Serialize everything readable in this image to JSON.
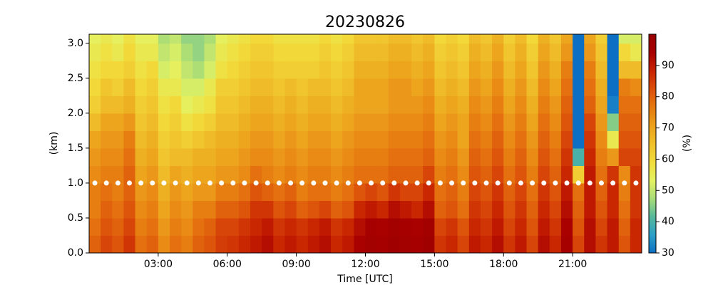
{
  "chart_data": {
    "type": "heatmap",
    "title": "20230826",
    "xlabel": "Time [UTC]",
    "ylabel": "(km)",
    "colorbar_label": "(%)",
    "xlim": [
      0,
      24
    ],
    "ylim": [
      0,
      3.13
    ],
    "xticks": [
      {
        "value": 3,
        "label": "03:00"
      },
      {
        "value": 6,
        "label": "06:00"
      },
      {
        "value": 9,
        "label": "09:00"
      },
      {
        "value": 12,
        "label": "12:00"
      },
      {
        "value": 15,
        "label": "15:00"
      },
      {
        "value": 18,
        "label": "18:00"
      },
      {
        "value": 21,
        "label": "21:00"
      }
    ],
    "yticks": [
      {
        "value": 0,
        "label": "0.0"
      },
      {
        "value": 0.5,
        "label": "0.5"
      },
      {
        "value": 1,
        "label": "1.0"
      },
      {
        "value": 1.5,
        "label": "1.5"
      },
      {
        "value": 2,
        "label": "2.0"
      },
      {
        "value": 2.5,
        "label": "2.5"
      },
      {
        "value": 3,
        "label": "3.0"
      }
    ],
    "clim": [
      30,
      100
    ],
    "cticks": [
      30,
      40,
      50,
      60,
      70,
      80,
      90
    ],
    "colormap": [
      "#0c6fc4",
      "#2a9fc8",
      "#56b89a",
      "#a8dc78",
      "#e4f262",
      "#f2dc3c",
      "#f0c02a",
      "#eca01c",
      "#e67a10",
      "#dc500a",
      "#c82402",
      "#a80000",
      "#980000"
    ],
    "x": [
      0.25,
      0.75,
      1.25,
      1.75,
      2.25,
      2.75,
      3.25,
      3.75,
      4.25,
      4.75,
      5.25,
      5.75,
      6.25,
      6.75,
      7.25,
      7.75,
      8.25,
      8.75,
      9.25,
      9.75,
      10.25,
      10.75,
      11.25,
      11.75,
      12.25,
      12.75,
      13.25,
      13.75,
      14.25,
      14.75,
      15.25,
      15.75,
      16.25,
      16.75,
      17.25,
      17.75,
      18.25,
      18.75,
      19.25,
      19.75,
      20.25,
      20.75,
      21.25,
      21.75,
      22.25,
      22.75,
      23.25,
      23.75
    ],
    "y": [
      0.125,
      0.375,
      0.625,
      0.875,
      1.125,
      1.375,
      1.625,
      1.875,
      2.125,
      2.375,
      2.625,
      2.875,
      3.125
    ],
    "z": [
      [
        80,
        84,
        82,
        86,
        78,
        80,
        74,
        78,
        76,
        80,
        82,
        85,
        86,
        88,
        90,
        92,
        88,
        90,
        88,
        90,
        92,
        88,
        90,
        94,
        96,
        95,
        97,
        96,
        95,
        97,
        86,
        88,
        84,
        90,
        88,
        92,
        86,
        90,
        84,
        92,
        88,
        95,
        84,
        92,
        86,
        90,
        82,
        88
      ],
      [
        78,
        82,
        80,
        84,
        76,
        78,
        72,
        76,
        74,
        78,
        80,
        84,
        84,
        86,
        88,
        90,
        86,
        88,
        86,
        88,
        90,
        86,
        88,
        92,
        95,
        94,
        96,
        95,
        94,
        96,
        84,
        86,
        82,
        88,
        86,
        90,
        84,
        88,
        82,
        90,
        86,
        94,
        82,
        92,
        84,
        90,
        80,
        88
      ],
      [
        76,
        80,
        78,
        82,
        74,
        76,
        70,
        74,
        72,
        76,
        76,
        80,
        80,
        82,
        86,
        86,
        82,
        84,
        80,
        82,
        84,
        80,
        82,
        88,
        90,
        88,
        92,
        90,
        88,
        92,
        80,
        82,
        78,
        86,
        84,
        88,
        82,
        86,
        80,
        88,
        84,
        92,
        80,
        90,
        82,
        88,
        78,
        86
      ],
      [
        76,
        78,
        76,
        80,
        72,
        74,
        68,
        72,
        70,
        72,
        72,
        76,
        76,
        78,
        82,
        80,
        78,
        80,
        76,
        78,
        78,
        76,
        78,
        82,
        84,
        82,
        86,
        84,
        84,
        88,
        78,
        80,
        76,
        84,
        82,
        86,
        80,
        84,
        78,
        86,
        82,
        90,
        78,
        90,
        80,
        88,
        76,
        86
      ],
      [
        74,
        76,
        76,
        80,
        70,
        72,
        66,
        70,
        68,
        70,
        70,
        72,
        72,
        74,
        78,
        76,
        74,
        76,
        74,
        76,
        76,
        74,
        76,
        78,
        78,
        78,
        80,
        80,
        80,
        84,
        76,
        78,
        74,
        82,
        80,
        84,
        78,
        82,
        76,
        84,
        80,
        88,
        62,
        90,
        78,
        86,
        74,
        86
      ],
      [
        72,
        74,
        74,
        78,
        68,
        70,
        64,
        66,
        66,
        68,
        68,
        70,
        70,
        72,
        74,
        74,
        72,
        74,
        72,
        74,
        74,
        72,
        74,
        76,
        76,
        76,
        78,
        78,
        78,
        80,
        74,
        76,
        72,
        80,
        78,
        82,
        76,
        80,
        74,
        82,
        78,
        86,
        40,
        88,
        76,
        72,
        84,
        84
      ],
      [
        70,
        72,
        72,
        76,
        66,
        68,
        62,
        64,
        62,
        64,
        66,
        68,
        68,
        70,
        72,
        72,
        70,
        72,
        70,
        72,
        72,
        70,
        72,
        74,
        74,
        74,
        76,
        76,
        76,
        78,
        72,
        74,
        70,
        78,
        76,
        80,
        74,
        78,
        72,
        80,
        76,
        84,
        30,
        86,
        74,
        56,
        82,
        82
      ],
      [
        66,
        70,
        70,
        72,
        64,
        66,
        60,
        62,
        58,
        60,
        62,
        66,
        66,
        68,
        70,
        70,
        68,
        70,
        68,
        70,
        70,
        68,
        70,
        72,
        72,
        72,
        74,
        74,
        74,
        76,
        70,
        72,
        70,
        76,
        74,
        78,
        72,
        76,
        70,
        78,
        74,
        82,
        30,
        84,
        72,
        45,
        80,
        80
      ],
      [
        62,
        66,
        66,
        68,
        62,
        64,
        58,
        60,
        54,
        56,
        58,
        64,
        64,
        66,
        68,
        68,
        66,
        68,
        66,
        68,
        68,
        66,
        68,
        70,
        70,
        70,
        72,
        72,
        72,
        74,
        68,
        70,
        68,
        74,
        72,
        76,
        70,
        74,
        68,
        76,
        72,
        80,
        30,
        80,
        70,
        32,
        78,
        78
      ],
      [
        60,
        64,
        62,
        66,
        60,
        62,
        56,
        56,
        52,
        52,
        56,
        62,
        62,
        64,
        66,
        66,
        64,
        66,
        64,
        66,
        66,
        64,
        66,
        70,
        70,
        70,
        72,
        72,
        70,
        72,
        66,
        68,
        66,
        72,
        70,
        74,
        68,
        72,
        66,
        74,
        70,
        78,
        30,
        78,
        68,
        30,
        76,
        74
      ],
      [
        58,
        60,
        60,
        62,
        58,
        60,
        52,
        54,
        50,
        48,
        52,
        58,
        60,
        62,
        64,
        64,
        62,
        62,
        62,
        62,
        64,
        62,
        64,
        68,
        68,
        68,
        70,
        70,
        68,
        70,
        64,
        66,
        64,
        70,
        68,
        72,
        66,
        70,
        64,
        72,
        68,
        76,
        30,
        76,
        66,
        30,
        66,
        66
      ],
      [
        56,
        58,
        56,
        60,
        56,
        56,
        50,
        52,
        48,
        46,
        50,
        56,
        58,
        60,
        62,
        62,
        60,
        60,
        60,
        60,
        62,
        60,
        62,
        66,
        66,
        66,
        68,
        68,
        66,
        68,
        62,
        64,
        62,
        68,
        66,
        70,
        64,
        68,
        62,
        70,
        66,
        72,
        30,
        72,
        64,
        30,
        60,
        56
      ],
      [
        54,
        56,
        54,
        58,
        54,
        54,
        48,
        50,
        46,
        46,
        48,
        54,
        56,
        58,
        60,
        60,
        58,
        58,
        58,
        58,
        60,
        58,
        60,
        64,
        64,
        64,
        66,
        66,
        64,
        66,
        60,
        62,
        60,
        66,
        64,
        68,
        62,
        66,
        60,
        68,
        64,
        70,
        30,
        70,
        62,
        30,
        52,
        52
      ]
    ],
    "points": {
      "color": "#ffffff",
      "x": [
        0.25,
        0.75,
        1.25,
        1.75,
        2.25,
        2.75,
        3.25,
        3.75,
        4.25,
        4.75,
        5.25,
        5.75,
        6.25,
        6.75,
        7.25,
        7.75,
        8.25,
        8.75,
        9.25,
        9.75,
        10.25,
        10.75,
        11.25,
        11.75,
        12.25,
        12.75,
        13.25,
        13.75,
        14.25,
        14.75,
        15.25,
        15.75,
        16.25,
        16.75,
        17.25,
        17.75,
        18.25,
        18.75,
        19.25,
        19.75,
        20.25,
        20.75,
        21.25,
        21.75,
        22.25,
        22.75,
        23.25,
        23.75
      ],
      "y": [
        1,
        1,
        1,
        1,
        1,
        1,
        1,
        1,
        1,
        1,
        1,
        1,
        1,
        1,
        1,
        1,
        1,
        1,
        1,
        1,
        1,
        1,
        1,
        1,
        1,
        1,
        1,
        1,
        1,
        1,
        1,
        1,
        1,
        1,
        1,
        1,
        1,
        1,
        1,
        1,
        1,
        1,
        1,
        1,
        1,
        1,
        1,
        1
      ]
    }
  }
}
